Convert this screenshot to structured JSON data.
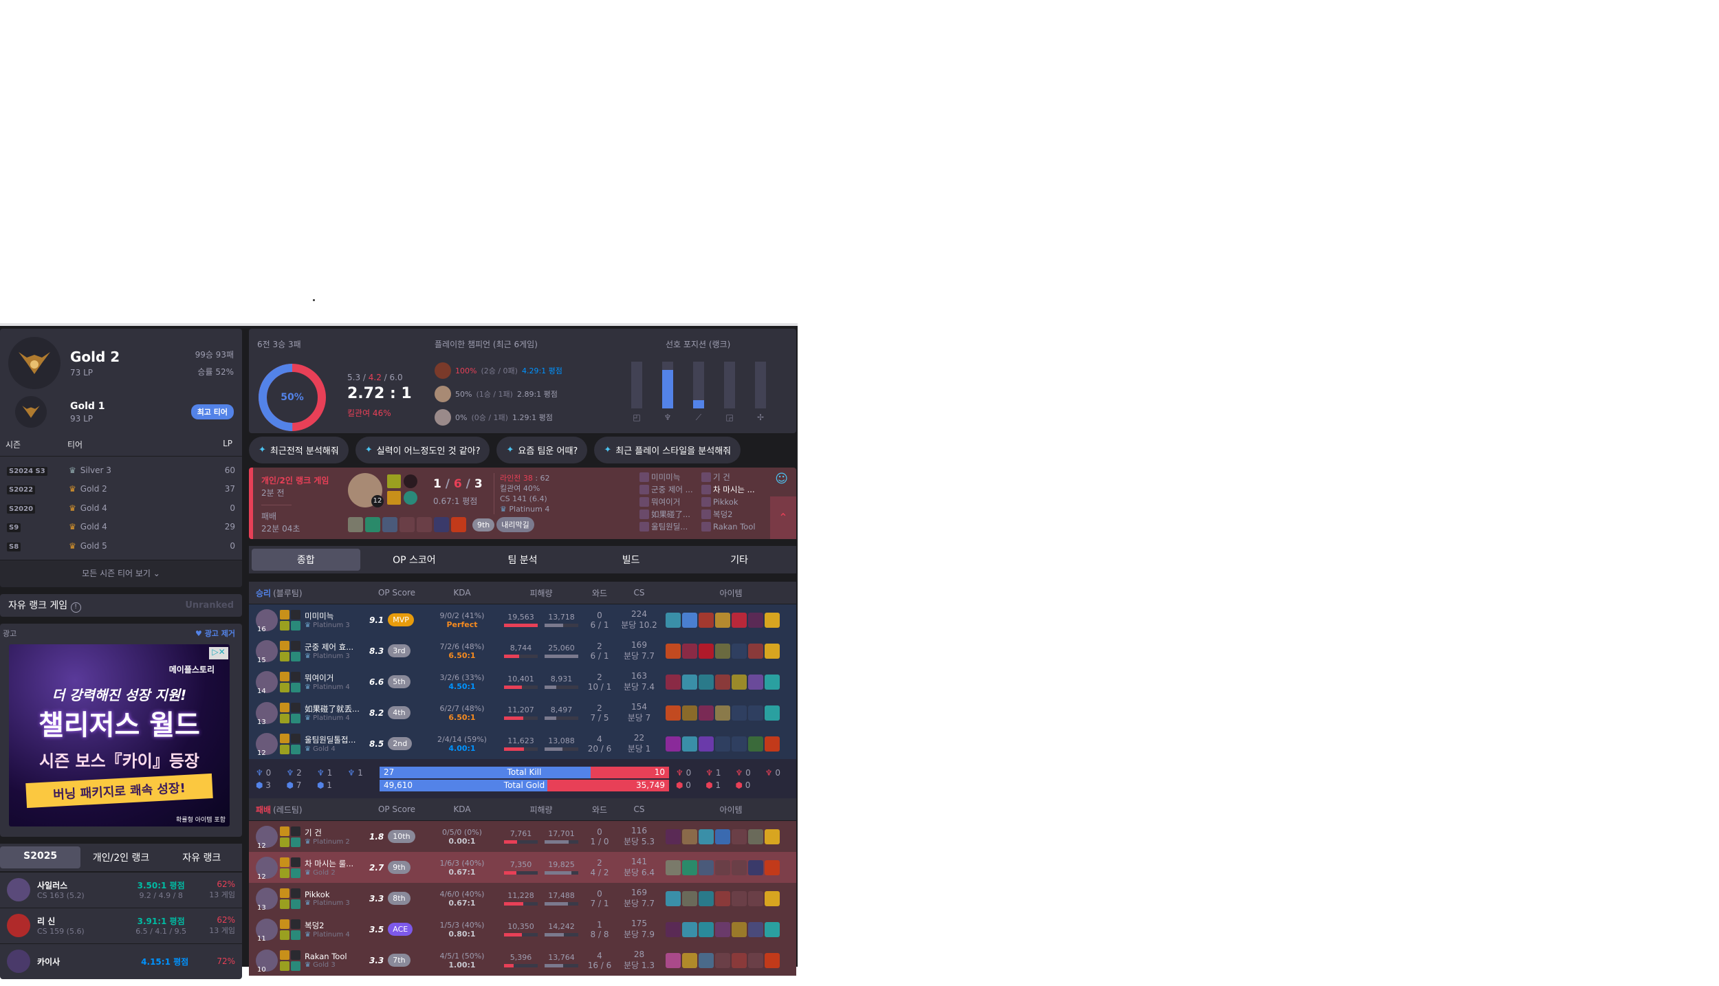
{
  "rank": {
    "tier": "Gold 2",
    "lp": "73 LP",
    "record": "99승 93패",
    "winrate": "승률 52%",
    "peak_tier": "Gold 1",
    "peak_lp": "93 LP",
    "peak_badge": "최고 티어",
    "headers": {
      "season": "시즌",
      "tier": "티어",
      "lp": "LP"
    },
    "seasons": [
      {
        "season": "S2024 S3",
        "tier": "Silver 3",
        "lp": "60",
        "color": "#8ca4a8"
      },
      {
        "season": "S2022",
        "tier": "Gold 2",
        "lp": "37",
        "color": "#d9952c"
      },
      {
        "season": "S2020",
        "tier": "Gold 4",
        "lp": "0",
        "color": "#d9952c"
      },
      {
        "season": "S9",
        "tier": "Gold 4",
        "lp": "29",
        "color": "#d9952c"
      },
      {
        "season": "S8",
        "tier": "Gold 5",
        "lp": "0",
        "color": "#d9952c"
      }
    ],
    "view_all": "모든 시즌 티어 보기"
  },
  "flex": {
    "title": "자유 랭크 게임",
    "status": "Unranked"
  },
  "ad": {
    "label": "광고",
    "remove": "광고 제거",
    "line1": "더 강력해진 성장 지원!",
    "line2": "챌리저스 월드",
    "line3": "시즌 보스『카이』등장",
    "line4": "버닝 패키지로 쾌속 성장!",
    "brand": "메이플스토리",
    "note": "확률형 아이템 포함"
  },
  "champ_tabs": [
    "S2025",
    "개인/2인 랭크",
    "자유 랭크"
  ],
  "champions": [
    {
      "name": "사일러스",
      "cs": "CS 163 (5.2)",
      "kda_ratio": "3.50:1 평점",
      "kda": "9.2 / 4.9 / 8",
      "wr": "62%",
      "games": "13 게임",
      "ratio_color": "#00bba3"
    },
    {
      "name": "리 신",
      "cs": "CS 159 (5.6)",
      "kda_ratio": "3.91:1 평점",
      "kda": "6.5 / 4.1 / 9.5",
      "wr": "62%",
      "games": "13 게임",
      "ratio_color": "#00bba3"
    },
    {
      "name": "카이사",
      "cs": "",
      "kda_ratio": "4.15:1 평점",
      "kda": "",
      "wr": "72%",
      "games": "",
      "ratio_color": "#0093ff"
    }
  ],
  "summary": {
    "record": "6전 3승 3패",
    "winrate": "50%",
    "win_fraction": 0.5,
    "k": "5.3",
    "d": "4.2",
    "a": "6.0",
    "ratio": "2.72 : 1",
    "kp": "킬관여 46%",
    "champs_title": "플레이한 챔피언 (최근 6게임)",
    "champs": [
      {
        "wr": "100%",
        "rec": "(2승 / 0패)",
        "kda": "4.29:1 평점",
        "hot": true
      },
      {
        "wr": "50%",
        "rec": "(1승 / 1패)",
        "kda": "2.89:1 평점",
        "hot": false
      },
      {
        "wr": "0%",
        "rec": "(0승 / 1패)",
        "kda": "1.29:1 평점",
        "hot": false
      }
    ],
    "pos_title": "선호 포지션 (랭크)",
    "positions": [
      {
        "name": "top",
        "v": 0
      },
      {
        "name": "jungle",
        "v": 0.83
      },
      {
        "name": "mid",
        "v": 0.17
      },
      {
        "name": "adc",
        "v": 0
      },
      {
        "name": "support",
        "v": 0
      }
    ]
  },
  "ai_prompts": [
    "최근전적 분석해줘",
    "실력이 어느정도인 것 같아?",
    "요즘 팀운 어때?",
    "최근 플레이 스타일을 분석해줘"
  ],
  "match": {
    "queue": "개인/2인 랭크 게임",
    "ago": "2분 전",
    "result": "패배",
    "duration": "22분 04초",
    "level": "12",
    "k": "1",
    "d": "6",
    "a": "3",
    "ratio": "0.67:1 평점",
    "lane": "라인전 38 : 62",
    "lane_label": "라인전 38",
    "lane_rest": " : 62",
    "kp": "킬관여 40%",
    "cs": "CS 141 (6.4)",
    "tier": "Platinum 4",
    "placement": "9th",
    "tag": "내리막길",
    "team1": [
      "미미미늑",
      "군중 제어 ...",
      "뭐여이거",
      "如果碰了...",
      "울팀원딜..."
    ],
    "team2": [
      "기 건",
      "차 마시는 ...",
      "Pikkok",
      "복덩2",
      "Rakan Tool"
    ]
  },
  "detail_tabs": [
    "종합",
    "OP 스코어",
    "팀 분석",
    "빌드",
    "기타"
  ],
  "cols": {
    "op": "OP Score",
    "kda": "KDA",
    "dmg": "피해량",
    "ward": "와드",
    "cs": "CS",
    "items": "아이템"
  },
  "blue": {
    "result": "승리",
    "team": "(블루팀)",
    "players": [
      {
        "lvl": "16",
        "name": "미미미늑",
        "tier": "Platinum 3",
        "op": "9.1",
        "rank": "MVP",
        "kda": "9/0/2 (41%)",
        "ratio": "Perfect",
        "rc": "#f68b1f",
        "dealt": 19563,
        "taken": 13718,
        "dealt_s": "19,563",
        "taken_s": "13,718",
        "ward": "0",
        "ward2": "6 / 1",
        "cs": "224",
        "cspm": "분당 10.2",
        "items": [
          "#3a8fa8",
          "#4a7fd0",
          "#a3392f",
          "#b58a2f",
          "#b8283a",
          "#5a2a55",
          "#d8a520"
        ]
      },
      {
        "lvl": "15",
        "name": "군중 제어 효...",
        "tier": "Platinum 3",
        "op": "8.3",
        "rank": "3rd",
        "kda": "7/2/6 (48%)",
        "ratio": "6.50:1",
        "rc": "#f68b1f",
        "dealt": 8744,
        "taken": 25060,
        "dealt_s": "8,744",
        "taken_s": "25,060",
        "ward": "2",
        "ward2": "6 / 1",
        "cs": "169",
        "cspm": "분당 7.7",
        "items": [
          "#c24a20",
          "#8a2a45",
          "#b01a2a",
          "#6a6a40",
          "",
          "#8a3a3a",
          "#d8a520"
        ]
      },
      {
        "lvl": "14",
        "name": "뭐여이거",
        "tier": "Platinum 4",
        "op": "6.6",
        "rank": "5th",
        "kda": "3/2/6 (33%)",
        "ratio": "4.50:1",
        "rc": "#0093ff",
        "dealt": 10401,
        "taken": 8931,
        "dealt_s": "10,401",
        "taken_s": "8,931",
        "ward": "2",
        "ward2": "10 / 1",
        "cs": "163",
        "cspm": "분당 7.4",
        "items": [
          "#8a2a45",
          "#3a8fa8",
          "#2a7a8a",
          "#8a3a3a",
          "#9a8a2a",
          "#6a4a9a",
          "#2aa0a0"
        ]
      },
      {
        "lvl": "13",
        "name": "如果碰了就丢...",
        "tier": "Platinum 4",
        "op": "8.2",
        "rank": "4th",
        "kda": "6/2/7 (48%)",
        "ratio": "6.50:1",
        "rc": "#f68b1f",
        "dealt": 11207,
        "taken": 8497,
        "dealt_s": "11,207",
        "taken_s": "8,497",
        "ward": "2",
        "ward2": "7 / 5",
        "cs": "154",
        "cspm": "분당 7",
        "items": [
          "#c24a20",
          "#8a6a2a",
          "#7a2a55",
          "#8a7a4a",
          "",
          "",
          "#2aa0a0"
        ]
      },
      {
        "lvl": "12",
        "name": "울팀원딜톨접...",
        "tier": "Gold 4",
        "op": "8.5",
        "rank": "2nd",
        "kda": "2/4/14 (59%)",
        "ratio": "4.00:1",
        "rc": "#0093ff",
        "dealt": 11623,
        "taken": 13088,
        "dealt_s": "11,623",
        "taken_s": "13,088",
        "ward": "4",
        "ward2": "20 / 6",
        "cs": "22",
        "cspm": "분당 1",
        "items": [
          "#8a2a9a",
          "#3a8fa8",
          "#6a3aaa",
          "",
          "",
          "#3a6a3a",
          "#c23a1a"
        ]
      }
    ]
  },
  "totals": {
    "blue_kills": "27",
    "red_kills": "10",
    "kill_label": "Total Kill",
    "blue_gold": "49,610",
    "red_gold": "35,749",
    "gold_label": "Total Gold",
    "kill_frac": 0.73,
    "gold_frac": 0.58,
    "blue_obj": [
      "0",
      "2",
      "1",
      "1",
      "3",
      "7",
      "1"
    ],
    "red_obj": [
      "0",
      "1",
      "0",
      "0",
      "0",
      "1",
      "0"
    ]
  },
  "red": {
    "result": "패배",
    "team": "(레드팀)",
    "players": [
      {
        "lvl": "12",
        "name": "기 건",
        "tier": "Platinum 2",
        "op": "1.8",
        "rank": "10th",
        "kda": "0/5/0 (0%)",
        "ratio": "0.00:1",
        "rc": "#c8c8d0",
        "dealt": 7761,
        "taken": 17701,
        "dealt_s": "7,761",
        "taken_s": "17,701",
        "ward": "0",
        "ward2": "1 / 0",
        "cs": "116",
        "cspm": "분당 5.3",
        "items": [
          "#5a2a55",
          "#8a6a4a",
          "#3a8fa8",
          "#3a6ab0",
          "",
          "#6a6a5a",
          "#d8a520"
        ]
      },
      {
        "lvl": "12",
        "name": "차 마시는 룰...",
        "tier": "Gold 2",
        "op": "2.7",
        "rank": "9th",
        "kda": "1/6/3 (40%)",
        "ratio": "0.67:1",
        "rc": "#c8c8d0",
        "dealt": 7350,
        "taken": 19825,
        "dealt_s": "7,350",
        "taken_s": "19,825",
        "ward": "2",
        "ward2": "4 / 2",
        "cs": "141",
        "cspm": "분당 6.4",
        "me": true,
        "items": [
          "#7a7a6a",
          "#2a8a6a",
          "#4a5a7a",
          "",
          "",
          "#3a3a6a",
          "#c23a1a"
        ]
      },
      {
        "lvl": "13",
        "name": "Pikkok",
        "tier": "Platinum 3",
        "op": "3.3",
        "rank": "8th",
        "kda": "4/6/0 (40%)",
        "ratio": "0.67:1",
        "rc": "#c8c8d0",
        "dealt": 11228,
        "taken": 17488,
        "dealt_s": "11,228",
        "taken_s": "17,488",
        "ward": "0",
        "ward2": "7 / 1",
        "cs": "169",
        "cspm": "분당 7.7",
        "items": [
          "#3a8fa8",
          "#6a6a5a",
          "#2a7a8a",
          "#8a3a3a",
          "",
          "",
          "#d8a520"
        ]
      },
      {
        "lvl": "11",
        "name": "복덩2",
        "tier": "Platinum 4",
        "op": "3.5",
        "rank": "ACE",
        "kda": "1/5/3 (40%)",
        "ratio": "0.80:1",
        "rc": "#c8c8d0",
        "dealt": 10350,
        "taken": 14242,
        "dealt_s": "10,350",
        "taken_s": "14,242",
        "ward": "1",
        "ward2": "8 / 8",
        "cs": "175",
        "cspm": "분당 7.9",
        "items": [
          "#5a2a55",
          "#3a8fa8",
          "#2a8a9a",
          "#6a3a6a",
          "#9a7a2a",
          "#4a4a7a",
          "#2aa0a0"
        ]
      },
      {
        "lvl": "10",
        "name": "Rakan Tool",
        "tier": "Gold 3",
        "op": "3.3",
        "rank": "7th",
        "kda": "4/5/1 (50%)",
        "ratio": "1.00:1",
        "rc": "#c8c8d0",
        "dealt": 5396,
        "taken": 13764,
        "dealt_s": "5,396",
        "taken_s": "13,764",
        "ward": "4",
        "ward2": "16 / 6",
        "cs": "28",
        "cspm": "분당 1.3",
        "items": [
          "#aa4a8a",
          "#b08a2a",
          "#4a6a8a",
          "",
          "#8a3a3a",
          "",
          "#c23a1a"
        ]
      }
    ]
  },
  "colors": {
    "blue": "#5383e8",
    "red": "#e84057",
    "gold": "#e89c0c",
    "bg": "#1c1c1f",
    "panel": "#31313c"
  }
}
